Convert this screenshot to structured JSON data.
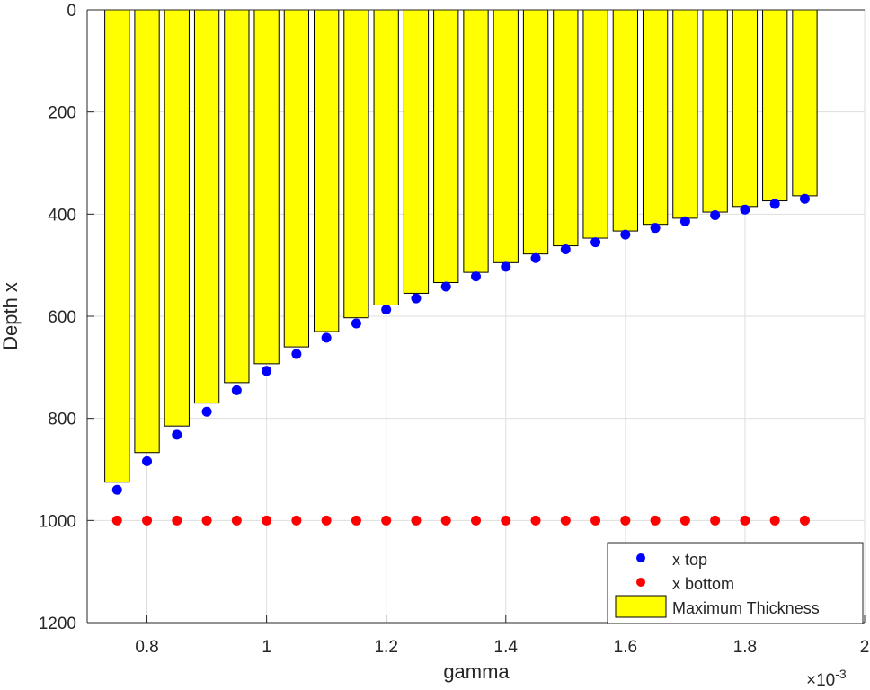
{
  "chart_data": {
    "type": "bar",
    "xlabel": "gamma",
    "ylabel": "Depth x",
    "x_exponent_label": "×10",
    "x_exponent_power": "-3",
    "xlim": [
      0.7,
      2.0
    ],
    "ylim": [
      0,
      1200
    ],
    "y_reversed": true,
    "grid": true,
    "x_ticks": [
      0.8,
      1.0,
      1.2,
      1.4,
      1.6,
      1.8,
      2.0
    ],
    "x_tick_labels": [
      "0.8",
      "1",
      "1.2",
      "1.4",
      "1.6",
      "1.8",
      "2"
    ],
    "y_ticks": [
      0,
      200,
      400,
      600,
      800,
      1000,
      1200
    ],
    "y_tick_labels": [
      "0",
      "200",
      "400",
      "600",
      "800",
      "1000",
      "1200"
    ],
    "x": [
      0.75,
      0.8,
      0.85,
      0.9,
      0.95,
      1.0,
      1.05,
      1.1,
      1.15,
      1.2,
      1.25,
      1.3,
      1.35,
      1.4,
      1.45,
      1.5,
      1.55,
      1.6,
      1.65,
      1.7,
      1.75,
      1.8,
      1.85,
      1.9
    ],
    "series": [
      {
        "name": "Maximum Thickness",
        "kind": "bar",
        "color": "#ffff00",
        "values": [
          925,
          867,
          815,
          770,
          730,
          693,
          660,
          630,
          603,
          578,
          555,
          534,
          514,
          495,
          478,
          462,
          447,
          433,
          420,
          408,
          396,
          385,
          374,
          364
        ]
      },
      {
        "name": "x top",
        "kind": "scatter",
        "color": "#0000ff",
        "values": [
          940,
          884,
          832,
          787,
          745,
          707,
          674,
          642,
          614,
          587,
          565,
          542,
          522,
          503,
          486,
          469,
          455,
          440,
          427,
          414,
          402,
          391,
          380,
          370
        ]
      },
      {
        "name": "x bottom",
        "kind": "scatter",
        "color": "#ff0000",
        "values": [
          1000,
          1000,
          1000,
          1000,
          1000,
          1000,
          1000,
          1000,
          1000,
          1000,
          1000,
          1000,
          1000,
          1000,
          1000,
          1000,
          1000,
          1000,
          1000,
          1000,
          1000,
          1000,
          1000,
          1000
        ]
      }
    ],
    "legend": {
      "position": "bottom-right",
      "entries": [
        {
          "label": "x top",
          "color": "#0000ff",
          "kind": "scatter"
        },
        {
          "label": "x bottom",
          "color": "#ff0000",
          "kind": "scatter"
        },
        {
          "label": "Maximum Thickness",
          "color": "#ffff00",
          "kind": "bar"
        }
      ]
    }
  }
}
